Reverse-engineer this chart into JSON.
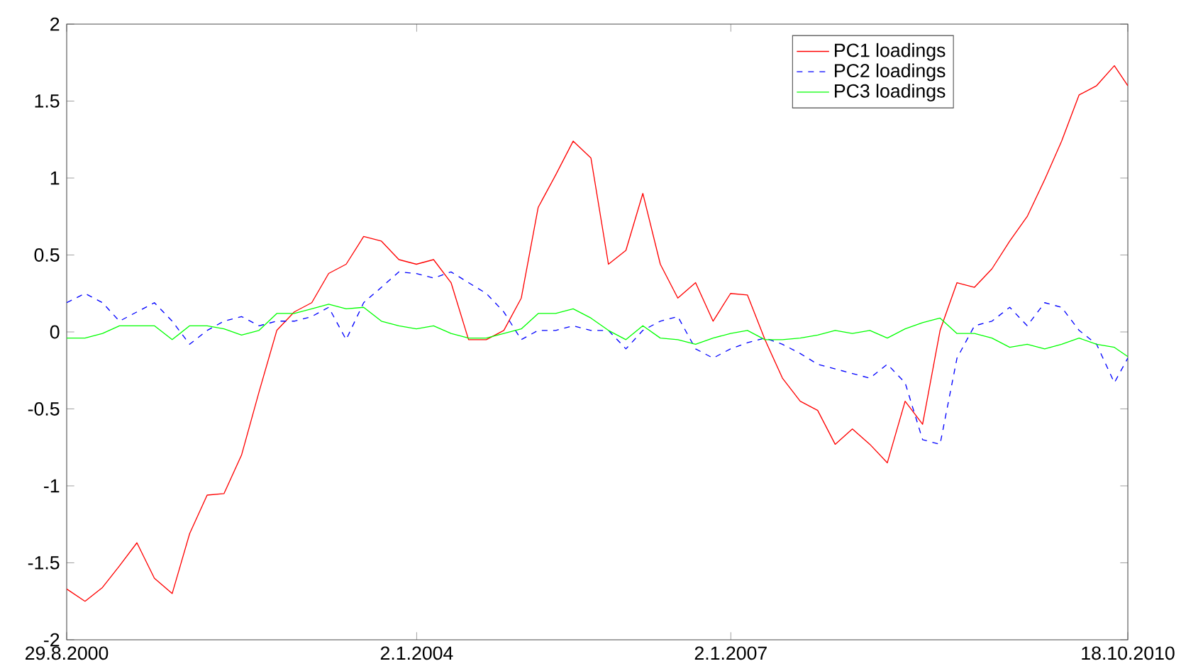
{
  "chart_data": {
    "type": "line",
    "legend": "top right",
    "x": [
      "2000-08-29",
      "2000-11-01",
      "2001-01-01",
      "2001-03-01",
      "2001-05-01",
      "2001-07-01",
      "2001-09-01",
      "2001-11-01",
      "2002-01-01",
      "2002-03-01",
      "2002-05-01",
      "2002-07-01",
      "2002-09-01",
      "2002-11-01",
      "2003-01-01",
      "2003-03-01",
      "2003-05-01",
      "2003-07-01",
      "2003-09-01",
      "2003-11-01",
      "2004-01-01",
      "2004-03-01",
      "2004-05-01",
      "2004-07-01",
      "2004-09-01",
      "2004-11-01",
      "2005-01-01",
      "2005-03-01",
      "2005-05-01",
      "2005-07-01",
      "2005-09-01",
      "2005-11-01",
      "2006-01-01",
      "2006-03-01",
      "2006-05-01",
      "2006-07-01",
      "2006-09-01",
      "2006-11-01",
      "2007-01-01",
      "2007-03-01",
      "2007-05-01",
      "2007-07-01",
      "2007-09-01",
      "2007-11-01",
      "2008-01-01",
      "2008-03-01",
      "2008-05-01",
      "2008-07-01",
      "2008-09-01",
      "2008-11-01",
      "2009-01-01",
      "2009-03-01",
      "2009-05-01",
      "2009-07-01",
      "2009-09-01",
      "2009-11-01",
      "2010-01-01",
      "2010-03-01",
      "2010-05-01",
      "2010-07-01",
      "2010-09-01",
      "2010-10-18"
    ],
    "series": [
      {
        "name": "PC1 loadings",
        "color": "#ff0000",
        "line_style": "solid",
        "values": [
          -1.67,
          -1.75,
          -1.66,
          -1.52,
          -1.37,
          -1.6,
          -1.7,
          -1.31,
          -1.06,
          -1.05,
          -0.8,
          -0.39,
          0.01,
          0.13,
          0.19,
          0.38,
          0.44,
          0.62,
          0.59,
          0.47,
          0.44,
          0.47,
          0.32,
          -0.05,
          -0.05,
          0.01,
          0.22,
          0.81,
          1.02,
          1.24,
          1.13,
          0.44,
          0.53,
          0.9,
          0.44,
          0.22,
          0.32,
          0.07,
          0.25,
          0.24,
          -0.05,
          -0.3,
          -0.45,
          -0.51,
          -0.73,
          -0.63,
          -0.73,
          -0.85,
          -0.45,
          -0.6,
          0.01,
          0.32,
          0.29,
          0.41,
          0.59,
          0.75,
          0.99,
          1.24,
          1.54,
          1.6,
          1.73,
          1.6
        ]
      },
      {
        "name": "PC2 loadings",
        "color": "#0000ff",
        "line_style": "dashed",
        "values": [
          0.19,
          0.25,
          0.19,
          0.07,
          0.13,
          0.19,
          0.07,
          -0.08,
          0.01,
          0.07,
          0.1,
          0.04,
          0.07,
          0.07,
          0.1,
          0.16,
          -0.05,
          0.19,
          0.29,
          0.39,
          0.38,
          0.35,
          0.39,
          0.32,
          0.25,
          0.13,
          -0.05,
          0.01,
          0.01,
          0.04,
          0.01,
          0.01,
          -0.11,
          0.01,
          0.07,
          0.1,
          -0.11,
          -0.17,
          -0.11,
          -0.07,
          -0.04,
          -0.08,
          -0.14,
          -0.21,
          -0.24,
          -0.27,
          -0.3,
          -0.21,
          -0.33,
          -0.7,
          -0.73,
          -0.17,
          0.04,
          0.07,
          0.16,
          0.04,
          0.19,
          0.16,
          0.01,
          -0.08,
          -0.33,
          -0.17
        ]
      },
      {
        "name": "PC3 loadings",
        "color": "#00ff00",
        "line_style": "solid",
        "values": [
          -0.04,
          -0.04,
          -0.01,
          0.04,
          0.04,
          0.04,
          -0.05,
          0.04,
          0.04,
          0.02,
          -0.02,
          0.01,
          0.12,
          0.12,
          0.15,
          0.18,
          0.15,
          0.16,
          0.07,
          0.04,
          0.02,
          0.04,
          -0.01,
          -0.04,
          -0.04,
          -0.01,
          0.02,
          0.12,
          0.12,
          0.15,
          0.09,
          0.01,
          -0.05,
          0.04,
          -0.04,
          -0.05,
          -0.08,
          -0.04,
          -0.01,
          0.01,
          -0.05,
          -0.05,
          -0.04,
          -0.02,
          0.01,
          -0.01,
          0.01,
          -0.04,
          0.02,
          0.06,
          0.09,
          -0.01,
          -0.01,
          -0.04,
          -0.1,
          -0.08,
          -0.11,
          -0.08,
          -0.04,
          -0.08,
          -0.1,
          -0.16
        ]
      }
    ],
    "xlim": [
      "2000-08-29",
      "2010-10-18"
    ],
    "xticks": [
      {
        "value": "2000-08-29",
        "label": "29.8.2000"
      },
      {
        "value": "2004-01-02",
        "label": "2.1.2004"
      },
      {
        "value": "2007-01-02",
        "label": "2.1.2007"
      },
      {
        "value": "2010-10-18",
        "label": "18.10.2010"
      }
    ],
    "ylim": [
      -2,
      2
    ],
    "yticks": [
      -2,
      -1.5,
      -1,
      -0.5,
      0,
      0.5,
      1,
      1.5,
      2
    ]
  }
}
